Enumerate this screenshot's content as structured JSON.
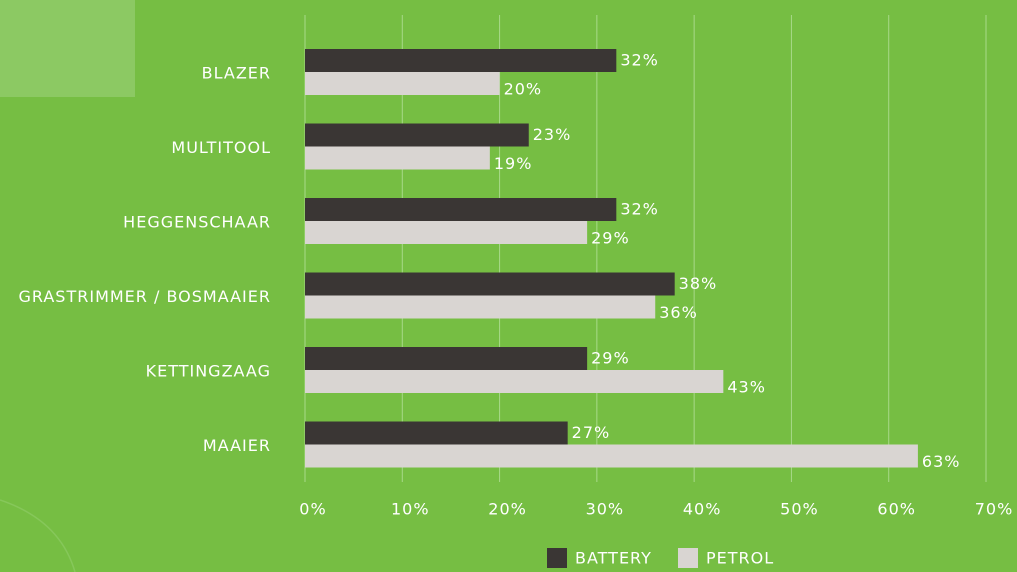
{
  "chart_data": {
    "type": "bar",
    "orientation": "horizontal",
    "categories": [
      "BLAZER",
      "MULTITOOL",
      "HEGGENSCHAAR",
      "GRASTRIMMER / BOSMAAIER",
      "KETTINGZAAG",
      "MAAIER"
    ],
    "series": [
      {
        "name": "BATTERY",
        "color": "#3a3634",
        "values": [
          32,
          23,
          32,
          38,
          29,
          27
        ],
        "value_labels": [
          "32%",
          "23%",
          "32%",
          "38%",
          "29%",
          "27%"
        ]
      },
      {
        "name": "PETROL",
        "color": "#d9d5d2",
        "values": [
          20,
          19,
          29,
          36,
          43,
          63
        ],
        "value_labels": [
          "20%",
          "19%",
          "29%",
          "36%",
          "43%",
          "63%"
        ]
      }
    ],
    "xlim": [
      0,
      70
    ],
    "xticks": [
      {
        "value": 0,
        "label": "0%"
      },
      {
        "value": 10,
        "label": "10%"
      },
      {
        "value": 20,
        "label": "20%"
      },
      {
        "value": 30,
        "label": "30%"
      },
      {
        "value": 40,
        "label": "40%"
      },
      {
        "value": 50,
        "label": "50%"
      },
      {
        "value": 60,
        "label": "60%"
      },
      {
        "value": 70,
        "label": "70%"
      }
    ],
    "grid": true,
    "legend": "bottom"
  }
}
